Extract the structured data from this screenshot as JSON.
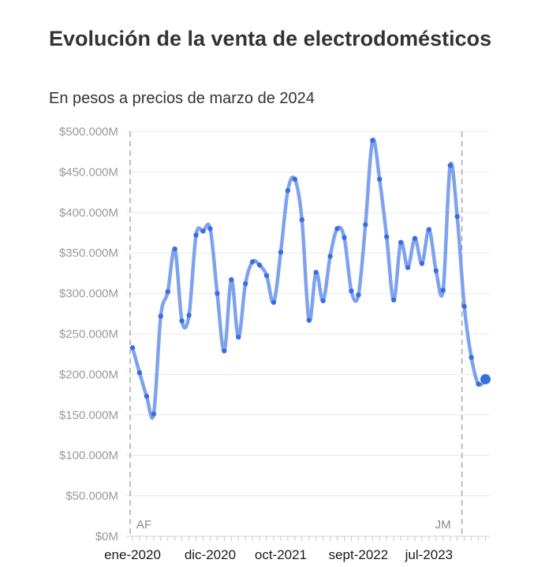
{
  "chart_data": {
    "type": "line",
    "title": "Evolución de la venta de electrodomésticos",
    "subtitle": "En pesos a precios de marzo de 2024",
    "xlabel": "",
    "ylabel": "",
    "ylim": [
      0,
      500000
    ],
    "grid": true,
    "y_ticks": [
      {
        "value": 0,
        "label": "$0M"
      },
      {
        "value": 50000,
        "label": "$50.000M"
      },
      {
        "value": 100000,
        "label": "$100.000M"
      },
      {
        "value": 150000,
        "label": "$150.000M"
      },
      {
        "value": 200000,
        "label": "$200.000M"
      },
      {
        "value": 250000,
        "label": "$250.000M"
      },
      {
        "value": 300000,
        "label": "$300.000M"
      },
      {
        "value": 350000,
        "label": "$350.000M"
      },
      {
        "value": 400000,
        "label": "$400.000M"
      },
      {
        "value": 450000,
        "label": "$450.000M"
      },
      {
        "value": 500000,
        "label": "$500.000M"
      }
    ],
    "x_ticks": [
      {
        "index": 0,
        "label": "ene-2020"
      },
      {
        "index": 11,
        "label": "dic-2020"
      },
      {
        "index": 21,
        "label": "oct-2021"
      },
      {
        "index": 32,
        "label": "sept-2022"
      },
      {
        "index": 42,
        "label": "jul-2023"
      }
    ],
    "annotations": [
      {
        "index": 0,
        "label": "AF"
      },
      {
        "index": 47,
        "label": "JM"
      }
    ],
    "series": [
      {
        "color": "#7ea2ec",
        "marker_color": "#3a6ee0",
        "values": [
          233000,
          202000,
          173000,
          151000,
          272000,
          302000,
          355000,
          266000,
          273000,
          372000,
          377000,
          380000,
          300000,
          229000,
          317000,
          246000,
          312000,
          339000,
          335000,
          322000,
          289000,
          351000,
          427000,
          441000,
          391000,
          267000,
          326000,
          291000,
          346000,
          380000,
          369000,
          303000,
          298000,
          385000,
          489000,
          441000,
          370000,
          292000,
          363000,
          332000,
          368000,
          337000,
          379000,
          328000,
          304000,
          458000,
          395000,
          284000,
          221000,
          188000,
          194000
        ]
      }
    ]
  }
}
